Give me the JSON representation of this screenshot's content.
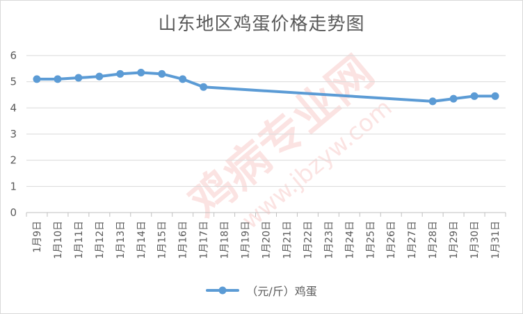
{
  "chart_data": {
    "type": "line",
    "title": "山东地区鸡蛋价格走势图",
    "categories": [
      "1月9日",
      "1月10日",
      "1月11日",
      "1月12日",
      "1月13日",
      "1月14日",
      "1月15日",
      "1月16日",
      "1月17日",
      "1月18日",
      "1月19日",
      "1月20日",
      "1月21日",
      "1月22日",
      "1月23日",
      "1月24日",
      "1月25日",
      "1月26日",
      "1月27日",
      "1月28日",
      "1月29日",
      "1月30日",
      "1月31日"
    ],
    "series": [
      {
        "name": "（元/斤）鸡蛋",
        "color": "#5b9bd5",
        "values": [
          5.1,
          5.1,
          5.15,
          5.2,
          5.3,
          5.35,
          5.3,
          5.1,
          4.8,
          null,
          null,
          null,
          null,
          null,
          null,
          null,
          null,
          null,
          null,
          4.25,
          4.35,
          4.45,
          4.45
        ]
      }
    ],
    "y_ticks": [
      "0",
      "1",
      "2",
      "3",
      "4",
      "5",
      "6"
    ],
    "ylim": [
      0,
      6
    ],
    "grid": true,
    "legend_position": "bottom",
    "watermark": "鸡病专业网 www.jbzyw.com"
  }
}
